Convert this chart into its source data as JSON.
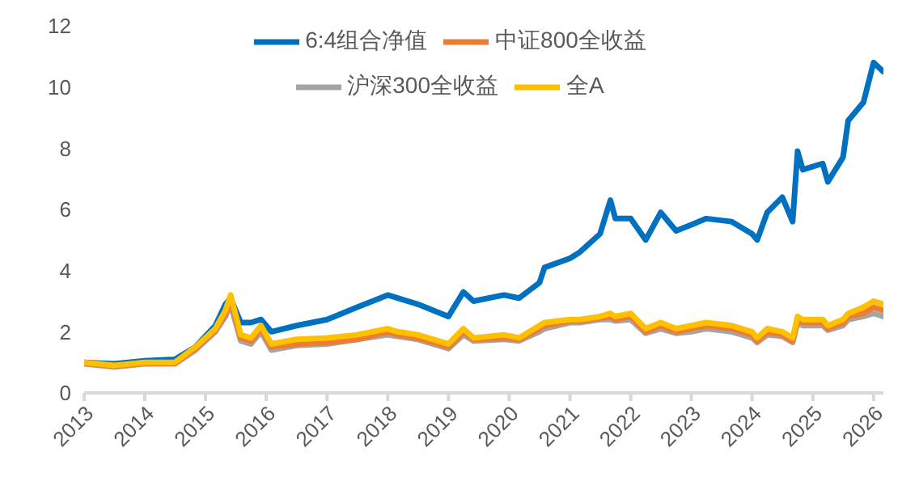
{
  "chart_data": {
    "type": "line",
    "legend": "top",
    "grid": false,
    "marker": "none",
    "line_style": "solid",
    "x": [
      "2013-01",
      "2013-07",
      "2014-01",
      "2014-07",
      "2014-11",
      "2015-03",
      "2015-05",
      "2015-06",
      "2015-08",
      "2015-10",
      "2015-12",
      "2016-02",
      "2016-07",
      "2017-01",
      "2017-07",
      "2018-01",
      "2018-03",
      "2018-07",
      "2019-01",
      "2019-04",
      "2019-06",
      "2019-12",
      "2020-03",
      "2020-07",
      "2020-08",
      "2021-01",
      "2021-03",
      "2021-07",
      "2021-09",
      "2021-10",
      "2022-01",
      "2022-04",
      "2022-07",
      "2022-10",
      "2023-01",
      "2023-04",
      "2023-09",
      "2024-01",
      "2024-02",
      "2024-04",
      "2024-07",
      "2024-09",
      "2024-10",
      "2024-11",
      "2025-03",
      "2025-04",
      "2025-07",
      "2025-08",
      "2025-11",
      "2026-01",
      "2026-03"
    ],
    "xlim": [
      "2013-01",
      "2026-03"
    ],
    "xticks": [
      "2013",
      "2014",
      "2015",
      "2016",
      "2017",
      "2018",
      "2019",
      "2020",
      "2021",
      "2022",
      "2023",
      "2024",
      "2025",
      "2026"
    ],
    "ylim": [
      0,
      12
    ],
    "yticks": [
      0,
      2,
      4,
      6,
      8,
      10,
      12
    ],
    "series": [
      {
        "name": "6:4组合净值",
        "color": "#0070c0",
        "values": [
          1.0,
          0.95,
          1.05,
          1.1,
          1.5,
          2.2,
          2.9,
          3.1,
          2.3,
          2.3,
          2.4,
          2.0,
          2.2,
          2.4,
          2.8,
          3.2,
          3.1,
          2.9,
          2.5,
          3.3,
          3.0,
          3.2,
          3.1,
          3.6,
          4.1,
          4.4,
          4.6,
          5.2,
          6.3,
          5.7,
          5.7,
          5.0,
          5.9,
          5.3,
          5.5,
          5.7,
          5.6,
          5.2,
          5.0,
          5.9,
          6.4,
          5.6,
          7.9,
          7.3,
          7.5,
          6.9,
          7.7,
          8.9,
          9.5,
          10.8,
          10.5
        ]
      },
      {
        "name": "中证800全收益",
        "color": "#ed7d31",
        "values": [
          0.98,
          0.87,
          0.97,
          0.97,
          1.45,
          2.05,
          2.6,
          3.0,
          1.8,
          1.7,
          2.1,
          1.5,
          1.6,
          1.65,
          1.75,
          2.0,
          1.9,
          1.8,
          1.5,
          2.0,
          1.75,
          1.8,
          1.75,
          2.1,
          2.2,
          2.35,
          2.35,
          2.45,
          2.5,
          2.4,
          2.5,
          2.0,
          2.2,
          2.0,
          2.1,
          2.2,
          2.1,
          1.9,
          1.7,
          2.0,
          1.9,
          1.7,
          2.4,
          2.3,
          2.3,
          2.1,
          2.3,
          2.5,
          2.6,
          2.8,
          2.7
        ]
      },
      {
        "name": "沪深300全收益",
        "color": "#a5a5a5",
        "values": [
          0.95,
          0.85,
          0.95,
          0.95,
          1.4,
          2.0,
          2.5,
          2.9,
          1.7,
          1.6,
          2.0,
          1.4,
          1.55,
          1.6,
          1.75,
          1.9,
          1.85,
          1.75,
          1.45,
          1.9,
          1.7,
          1.75,
          1.7,
          2.0,
          2.1,
          2.3,
          2.3,
          2.4,
          2.4,
          2.35,
          2.4,
          1.95,
          2.1,
          1.95,
          2.0,
          2.1,
          2.0,
          1.8,
          1.65,
          1.9,
          1.85,
          1.65,
          2.3,
          2.2,
          2.2,
          2.05,
          2.2,
          2.4,
          2.5,
          2.6,
          2.5
        ]
      },
      {
        "name": "全A",
        "color": "#ffc000",
        "values": [
          1.0,
          0.9,
          1.0,
          1.0,
          1.5,
          2.1,
          2.7,
          3.2,
          1.9,
          1.8,
          2.2,
          1.6,
          1.75,
          1.8,
          1.9,
          2.1,
          2.0,
          1.9,
          1.6,
          2.1,
          1.8,
          1.9,
          1.8,
          2.2,
          2.3,
          2.4,
          2.4,
          2.5,
          2.6,
          2.5,
          2.6,
          2.1,
          2.3,
          2.1,
          2.2,
          2.3,
          2.2,
          2.0,
          1.8,
          2.1,
          2.0,
          1.8,
          2.5,
          2.4,
          2.4,
          2.2,
          2.4,
          2.6,
          2.8,
          3.0,
          2.9
        ]
      }
    ]
  }
}
